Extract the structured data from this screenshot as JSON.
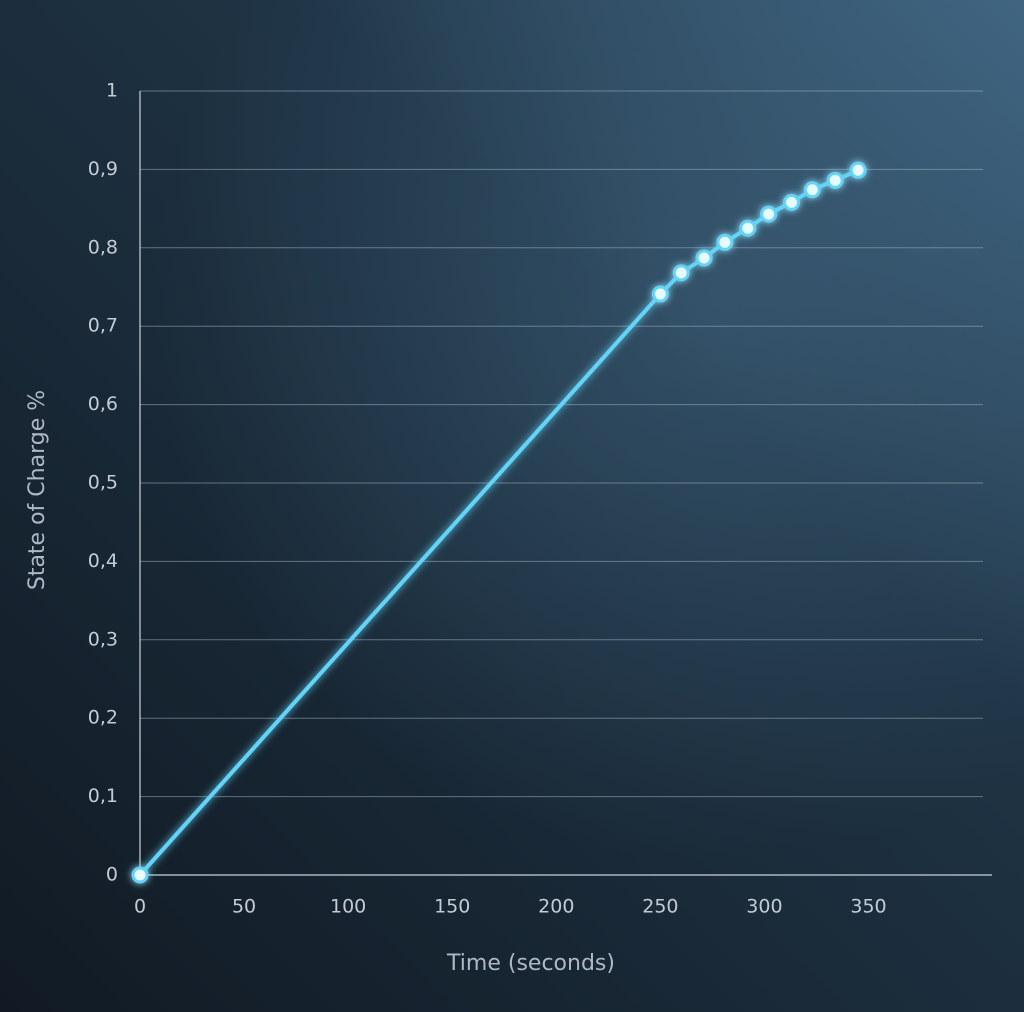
{
  "chart_data": {
    "type": "line",
    "x_label": "Time (seconds)",
    "y_label": "State of Charge %",
    "x": [
      0,
      250,
      260,
      271,
      281,
      292,
      302,
      313,
      323,
      334,
      345
    ],
    "values": [
      0,
      0.741,
      0.768,
      0.787,
      0.807,
      0.825,
      0.843,
      0.858,
      0.874,
      0.886,
      0.899
    ],
    "color": "#63d4f7",
    "xlim": [
      0,
      405
    ],
    "xticks": [
      0,
      50,
      100,
      150,
      200,
      250,
      300,
      350
    ],
    "ylim": [
      0,
      1
    ],
    "yticks": [
      0,
      {
        "value": 0.1,
        "label": "0,1"
      },
      {
        "value": 0.2,
        "label": "0,2"
      },
      {
        "value": 0.3,
        "label": "0,3"
      },
      {
        "value": 0.4,
        "label": "0,4"
      },
      {
        "value": 0.5,
        "label": "0,5"
      },
      {
        "value": 0.6,
        "label": "0,6"
      },
      {
        "value": 0.7,
        "label": "0,7"
      },
      {
        "value": 0.8,
        "label": "0,8"
      },
      {
        "value": 0.9,
        "label": "0,9"
      },
      1
    ],
    "grid": true
  }
}
